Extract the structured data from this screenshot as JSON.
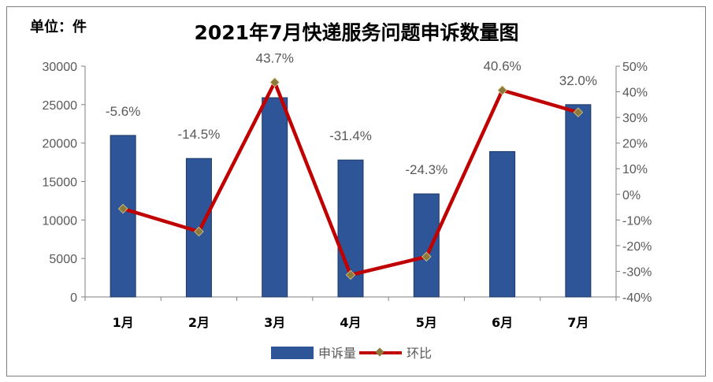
{
  "header": {
    "unit": "单位：件",
    "title": "2021年7月快递服务问题申诉数量图"
  },
  "colors": {
    "bar": "#2e5597",
    "bar_border": "#1f3864",
    "line": "#c00000",
    "marker": "#8c7a3c",
    "axis": "#7f7f7f",
    "tick_text": "#595959"
  },
  "chart_data": {
    "type": "bar",
    "title": "2021年7月快递服务问题申诉数量图",
    "categories": [
      "1月",
      "2月",
      "3月",
      "4月",
      "5月",
      "6月",
      "7月"
    ],
    "series": [
      {
        "name": "申诉量",
        "type": "bar",
        "axis": "left",
        "values": [
          21000,
          18000,
          25900,
          17800,
          13400,
          18900,
          25000
        ]
      },
      {
        "name": "环比",
        "type": "line",
        "axis": "right",
        "values": [
          -5.6,
          -14.5,
          43.7,
          -31.4,
          -24.3,
          40.6,
          32.0
        ],
        "labels": [
          "-5.6%",
          "-14.5%",
          "43.7%",
          "-31.4%",
          "-24.3%",
          "40.6%",
          "32.0%"
        ]
      }
    ],
    "ylim_left": [
      0,
      30000
    ],
    "yticks_left": [
      "0",
      "5000",
      "10000",
      "15000",
      "20000",
      "25000",
      "30000"
    ],
    "ylim_right": [
      -40,
      50
    ],
    "yticks_right": [
      "-40%",
      "-30%",
      "-20%",
      "-10%",
      "0%",
      "10%",
      "20%",
      "30%",
      "40%",
      "50%"
    ],
    "legend": {
      "position": "bottom",
      "entries": [
        "申诉量",
        "环比"
      ]
    },
    "grid": false
  }
}
